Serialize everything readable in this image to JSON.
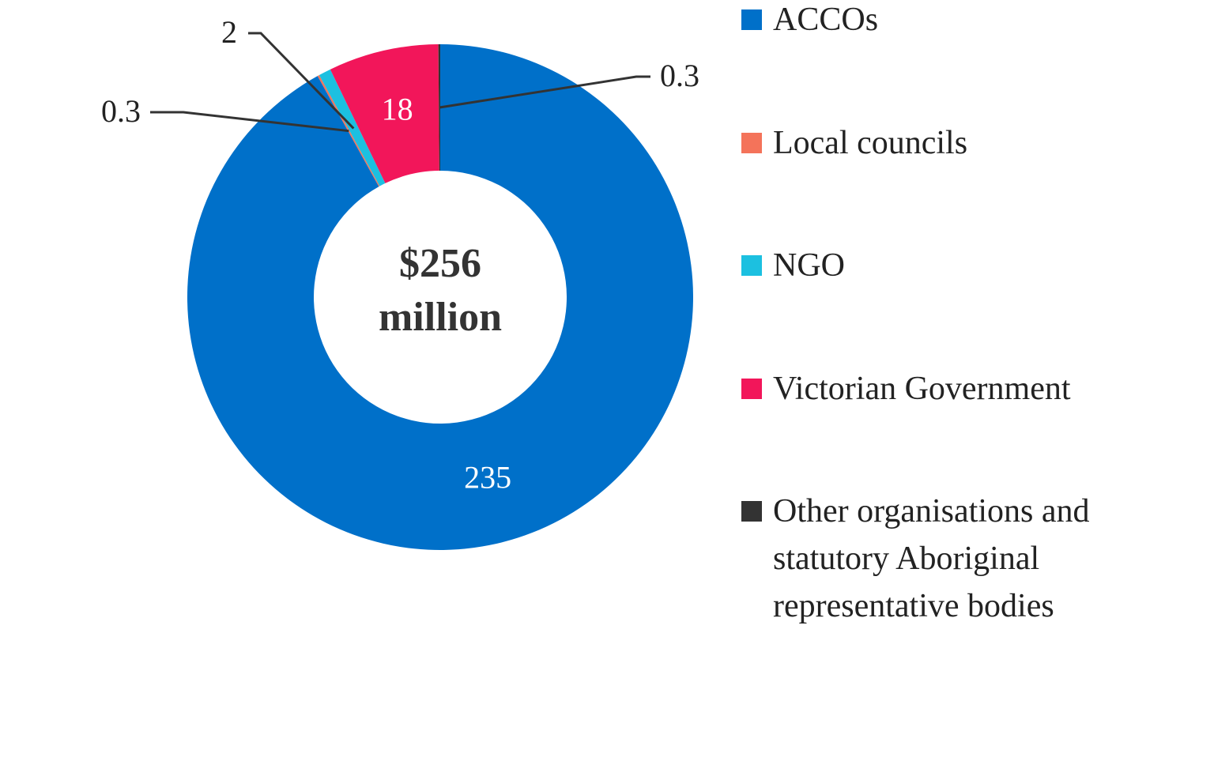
{
  "chart_data": {
    "type": "donut",
    "center_label_lines": [
      "$256",
      "million"
    ],
    "categories": [
      "ACCOs",
      "Local councils",
      "NGO",
      "Victorian Government",
      "Other organisations and statutory Aboriginal representative bodies"
    ],
    "values": [
      235,
      0.3,
      2,
      18,
      0.3
    ],
    "colors": [
      "#0070c9",
      "#f4735a",
      "#1cc0e0",
      "#f2165a",
      "#333333"
    ],
    "legend": "right"
  }
}
